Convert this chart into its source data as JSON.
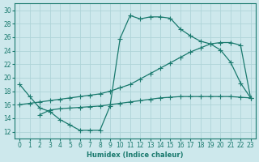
{
  "bg_color": "#cde8ec",
  "line_color": "#1a7a6e",
  "grid_color": "#afd4d8",
  "xlabel": "Humidex (Indice chaleur)",
  "xlim": [
    -0.5,
    23.5
  ],
  "ylim": [
    11,
    31
  ],
  "yticks": [
    12,
    14,
    16,
    18,
    20,
    22,
    24,
    26,
    28,
    30
  ],
  "xticks": [
    0,
    1,
    2,
    3,
    4,
    5,
    6,
    7,
    8,
    9,
    10,
    11,
    12,
    13,
    14,
    15,
    16,
    17,
    18,
    19,
    20,
    21,
    22,
    23
  ],
  "curve1_x": [
    0,
    1,
    2,
    3,
    4,
    5,
    6,
    7,
    8,
    9,
    10,
    11,
    12,
    13,
    14,
    15,
    16,
    17,
    18,
    19,
    20,
    21,
    22,
    23
  ],
  "curve1_y": [
    19,
    17.2,
    15.5,
    15.0,
    13.8,
    13.0,
    12.2,
    12.2,
    12.2,
    15.8,
    25.8,
    29.2,
    28.7,
    29.0,
    29.0,
    28.8,
    27.2,
    26.2,
    25.4,
    25.0,
    24.1,
    22.3,
    19.2,
    17.0
  ],
  "curve2_x": [
    0,
    1,
    2,
    3,
    4,
    5,
    6,
    7,
    8,
    9,
    10,
    11,
    12,
    13,
    14,
    15,
    16,
    17,
    18,
    19,
    20,
    21,
    22,
    23
  ],
  "curve2_y": [
    16.0,
    16.2,
    16.4,
    16.6,
    16.8,
    17.0,
    17.2,
    17.4,
    17.6,
    18.0,
    18.5,
    19.0,
    19.8,
    20.6,
    21.4,
    22.2,
    23.0,
    23.8,
    24.4,
    25.0,
    25.2,
    25.2,
    24.8,
    17.0
  ],
  "curve3_x": [
    2,
    3,
    4,
    5,
    6,
    7,
    8,
    9,
    10,
    11,
    12,
    13,
    14,
    15,
    16,
    17,
    18,
    19,
    20,
    21,
    22,
    23
  ],
  "curve3_y": [
    14.5,
    15.2,
    15.4,
    15.5,
    15.6,
    15.7,
    15.8,
    16.0,
    16.2,
    16.4,
    16.6,
    16.8,
    17.0,
    17.1,
    17.2,
    17.2,
    17.2,
    17.2,
    17.2,
    17.2,
    17.1,
    17.0
  ]
}
